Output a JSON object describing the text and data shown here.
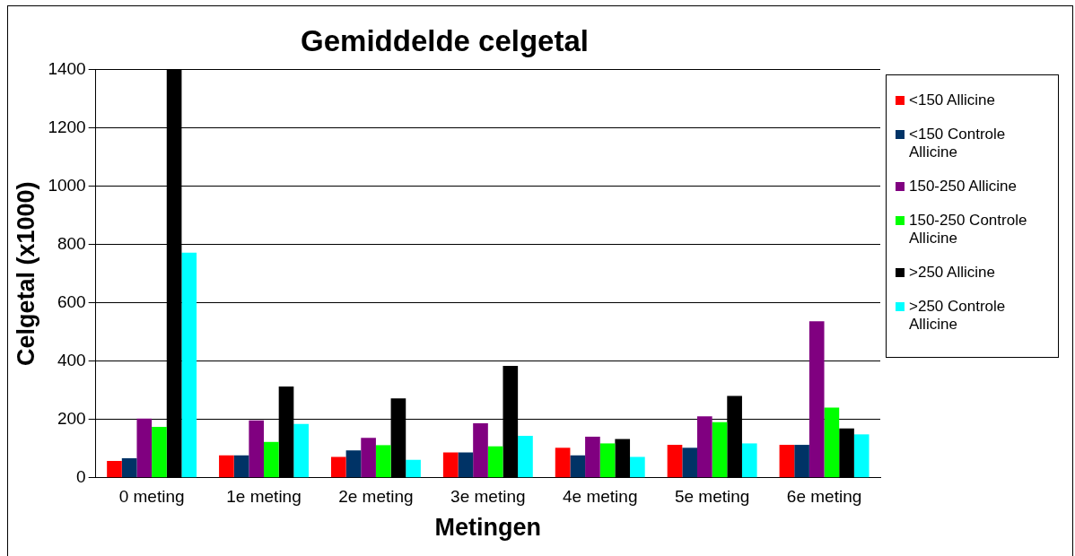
{
  "chart_data": {
    "type": "bar",
    "title": "Gemiddelde celgetal",
    "xlabel": "Metingen",
    "ylabel": "Celgetal (x1000)",
    "categories": [
      "0 meting",
      "1e meting",
      "2e meting",
      "3e meting",
      "4e meting",
      "5e meting",
      "6e meting"
    ],
    "series": [
      {
        "name": "<150 Allicine",
        "color": "#ff0000",
        "values": [
          58,
          77,
          72,
          87,
          103,
          113,
          113
        ]
      },
      {
        "name": "<150 Controle Allicine",
        "color": "#003366",
        "values": [
          67,
          77,
          94,
          87,
          77,
          103,
          113
        ]
      },
      {
        "name": "150-250 Allicine",
        "color": "#800080",
        "values": [
          203,
          197,
          137,
          187,
          141,
          211,
          537
        ]
      },
      {
        "name": "150-250 Controle Allicine",
        "color": "#00ff00",
        "values": [
          175,
          123,
          112,
          108,
          118,
          191,
          241
        ]
      },
      {
        "name": ">250 Allicine",
        "color": "#000000",
        "values": [
          1400,
          313,
          272,
          384,
          133,
          281,
          169
        ]
      },
      {
        "name": ">250 Controle Allicine",
        "color": "#00ffff",
        "values": [
          772,
          185,
          62,
          144,
          72,
          118,
          149
        ]
      }
    ],
    "ylim": [
      0,
      1400
    ],
    "yticks": [
      0,
      200,
      400,
      600,
      800,
      1000,
      1200,
      1400
    ],
    "grid": "y",
    "legend": "right"
  }
}
